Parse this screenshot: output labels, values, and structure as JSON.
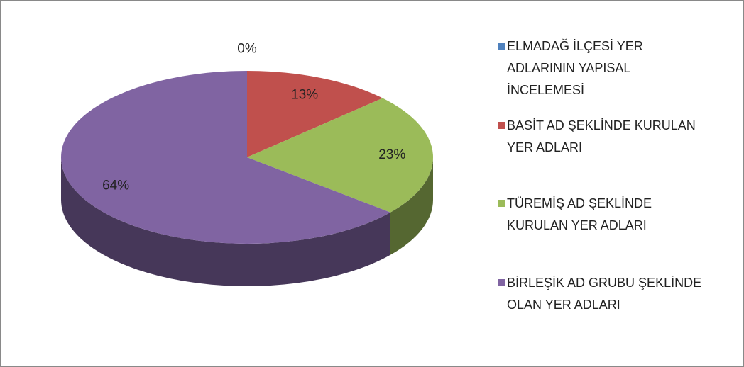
{
  "chart_data": {
    "type": "pie",
    "categories": [
      "ELMADAĞ İLÇESİ YER ADLARININ YAPISAL İNCELEMESİ",
      "BASİT AD ŞEKLİNDE KURULAN YER ADLARI",
      "TÜREMİŞ AD ŞEKLİNDE KURULAN YER ADLARI",
      "BİRLEŞİK AD GRUBU ŞEKLİNDE OLAN YER ADLARI"
    ],
    "values": [
      0,
      13,
      23,
      64
    ],
    "value_labels": [
      "0%",
      "13%",
      "23%",
      "64%"
    ],
    "colors": [
      "#4f81bd",
      "#c0504d",
      "#9bbb59",
      "#8064a2"
    ],
    "legend": "right"
  }
}
